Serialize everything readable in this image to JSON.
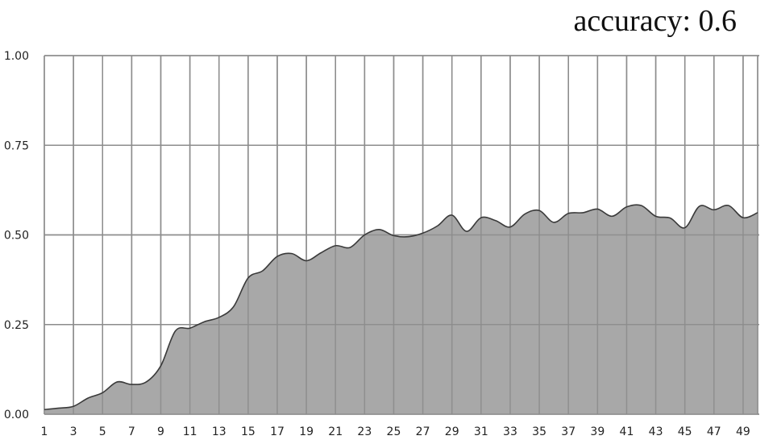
{
  "chart_data": {
    "type": "area",
    "title": "accuracy: 0.6",
    "xlabel": "",
    "ylabel": "",
    "x": [
      1,
      2,
      3,
      4,
      5,
      6,
      7,
      8,
      9,
      10,
      11,
      12,
      13,
      14,
      15,
      16,
      17,
      18,
      19,
      20,
      21,
      22,
      23,
      24,
      25,
      26,
      27,
      28,
      29,
      30,
      31,
      32,
      33,
      34,
      35,
      36,
      37,
      38,
      39,
      40,
      41,
      42,
      43,
      44,
      45,
      46,
      47,
      48,
      49,
      50
    ],
    "x_tick_labels": [
      "1",
      "3",
      "5",
      "7",
      "9",
      "11",
      "13",
      "15",
      "17",
      "19",
      "21",
      "23",
      "25",
      "27",
      "29",
      "31",
      "33",
      "35",
      "37",
      "39",
      "41",
      "43",
      "45",
      "47",
      "49"
    ],
    "y_tick_labels": [
      "0.00",
      "0.25",
      "0.50",
      "0.75",
      "1.00"
    ],
    "ylim": [
      0,
      1
    ],
    "grid": true,
    "series": [
      {
        "values": [
          0.013,
          0.017,
          0.022,
          0.045,
          0.06,
          0.09,
          0.083,
          0.09,
          0.135,
          0.232,
          0.24,
          0.258,
          0.27,
          0.3,
          0.38,
          0.4,
          0.44,
          0.448,
          0.428,
          0.45,
          0.47,
          0.465,
          0.5,
          0.515,
          0.498,
          0.495,
          0.505,
          0.525,
          0.555,
          0.51,
          0.548,
          0.54,
          0.522,
          0.558,
          0.568,
          0.535,
          0.56,
          0.562,
          0.572,
          0.552,
          0.578,
          0.582,
          0.552,
          0.547,
          0.52,
          0.58,
          0.57,
          0.582,
          0.548,
          0.562
        ]
      }
    ],
    "colors": {
      "fill": "#a8a8a8",
      "line": "#3a3a3a",
      "grid": "#8c8c8c"
    }
  }
}
